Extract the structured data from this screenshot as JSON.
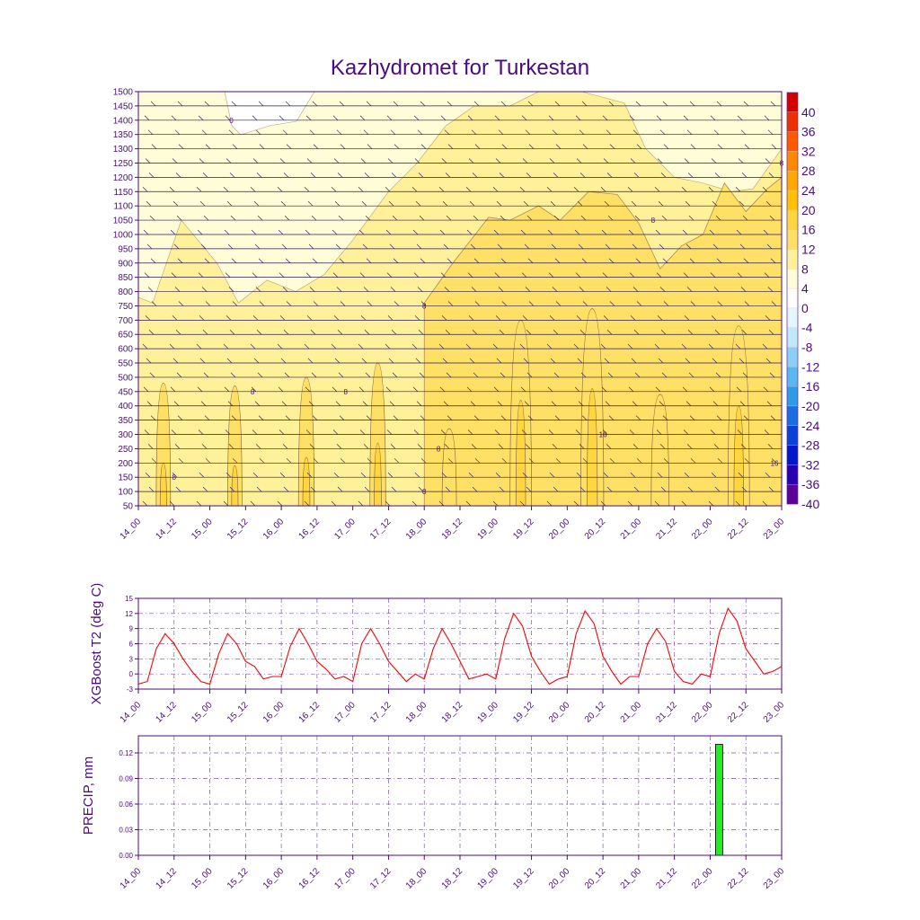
{
  "title": "Kazhydromet for Turkestan",
  "colors": {
    "frame": "#4b0b82",
    "t2_line": "#ff0000",
    "precip_bar": "#22ee22",
    "grid": "#7a5aa8"
  },
  "time_ticks": [
    "14_00",
    "14_12",
    "15_00",
    "15_12",
    "16_00",
    "16_12",
    "17_00",
    "17_12",
    "18_00",
    "18_12",
    "19_00",
    "19_12",
    "20_00",
    "20_12",
    "21_00",
    "21_12",
    "22_00",
    "22_12",
    "23_00"
  ],
  "chart_data": [
    {
      "type": "heatmap",
      "title": "Kazhydromet for Turkestan",
      "x_ticks": [
        "14_00",
        "14_12",
        "15_00",
        "15_12",
        "16_00",
        "16_12",
        "17_00",
        "17_12",
        "18_00",
        "18_12",
        "19_00",
        "19_12",
        "20_00",
        "20_12",
        "21_00",
        "21_12",
        "22_00",
        "22_12",
        "23_00"
      ],
      "y_ticks": [
        "50",
        "100",
        "150",
        "200",
        "250",
        "300",
        "350",
        "400",
        "450",
        "500",
        "550",
        "600",
        "650",
        "700",
        "750",
        "800",
        "850",
        "900",
        "950",
        "1000",
        "1050",
        "1100",
        "1150",
        "1200",
        "1250",
        "1300",
        "1350",
        "1400",
        "1450",
        "1500"
      ],
      "ylim": [
        50,
        1500
      ],
      "colorbar": {
        "labels": [
          "40",
          "36",
          "32",
          "28",
          "24",
          "20",
          "16",
          "12",
          "8",
          "4",
          "0",
          "-4",
          "-8",
          "-12",
          "-16",
          "-20",
          "-24",
          "-28",
          "-32",
          "-36",
          "-40"
        ],
        "colors": [
          "#d40000",
          "#ee3000",
          "#ff5a00",
          "#ff8800",
          "#ffa800",
          "#ffc000",
          "#ffd640",
          "#ffe066",
          "#fff09a",
          "#fffdd8",
          "#ffffff",
          "#e4f6ff",
          "#c0e8fa",
          "#8ccff4",
          "#58b8ef",
          "#2d9be8",
          "#1a6ee0",
          "#0a42d6",
          "#0018c8",
          "#2800b0",
          "#5a0096"
        ]
      },
      "contour_labels": [
        {
          "text": "0",
          "x": 15.3,
          "y": 1400
        },
        {
          "text": "8",
          "x": 14.5,
          "y": 150
        },
        {
          "text": "8",
          "x": 15.6,
          "y": 450
        },
        {
          "text": "8",
          "x": 16.9,
          "y": 450
        },
        {
          "text": "8",
          "x": 18.0,
          "y": 750
        },
        {
          "text": "8",
          "x": 18.2,
          "y": 250
        },
        {
          "text": "8",
          "x": 18.0,
          "y": 100
        },
        {
          "text": "16",
          "x": 20.5,
          "y": 300
        },
        {
          "text": "8",
          "x": 21.2,
          "y": 1050
        },
        {
          "text": "16",
          "x": 22.9,
          "y": 200
        },
        {
          "text": "8",
          "x": 23.0,
          "y": 1250
        }
      ],
      "warm_ceiling_m": [
        {
          "x": 14.0,
          "y": 780
        },
        {
          "x": 14.2,
          "y": 760
        },
        {
          "x": 14.6,
          "y": 1050
        },
        {
          "x": 15.1,
          "y": 900
        },
        {
          "x": 15.4,
          "y": 760
        },
        {
          "x": 15.8,
          "y": 840
        },
        {
          "x": 16.2,
          "y": 800
        },
        {
          "x": 16.6,
          "y": 860
        },
        {
          "x": 17.0,
          "y": 980
        },
        {
          "x": 17.5,
          "y": 1150
        },
        {
          "x": 17.9,
          "y": 1250
        },
        {
          "x": 18.3,
          "y": 1380
        },
        {
          "x": 18.7,
          "y": 1450
        },
        {
          "x": 19.2,
          "y": 1450
        },
        {
          "x": 19.6,
          "y": 1500
        },
        {
          "x": 19.9,
          "y": 1500
        },
        {
          "x": 20.2,
          "y": 1500
        },
        {
          "x": 20.8,
          "y": 1460
        },
        {
          "x": 21.1,
          "y": 1300
        },
        {
          "x": 21.5,
          "y": 1200
        },
        {
          "x": 21.9,
          "y": 1180
        },
        {
          "x": 22.3,
          "y": 1150
        },
        {
          "x": 22.6,
          "y": 1160
        },
        {
          "x": 23.0,
          "y": 1300
        }
      ],
      "warm8_boundary_m": [
        {
          "x": 18.0,
          "y": 50
        },
        {
          "x": 18.0,
          "y": 760
        },
        {
          "x": 18.4,
          "y": 900
        },
        {
          "x": 18.9,
          "y": 1060
        },
        {
          "x": 19.2,
          "y": 1050
        },
        {
          "x": 19.6,
          "y": 1100
        },
        {
          "x": 19.9,
          "y": 1050
        },
        {
          "x": 20.3,
          "y": 1150
        },
        {
          "x": 20.7,
          "y": 1140
        },
        {
          "x": 21.0,
          "y": 1040
        },
        {
          "x": 21.3,
          "y": 880
        },
        {
          "x": 21.6,
          "y": 960
        },
        {
          "x": 21.9,
          "y": 1000
        },
        {
          "x": 22.2,
          "y": 1180
        },
        {
          "x": 22.5,
          "y": 1080
        },
        {
          "x": 22.8,
          "y": 1160
        },
        {
          "x": 23.0,
          "y": 1200
        },
        {
          "x": 23.0,
          "y": 50
        }
      ],
      "diurnal_plumes_m": [
        {
          "center": 14.35,
          "top": 480,
          "width": 0.2
        },
        {
          "center": 15.35,
          "top": 470,
          "width": 0.2
        },
        {
          "center": 16.35,
          "top": 500,
          "width": 0.22
        },
        {
          "center": 17.35,
          "top": 550,
          "width": 0.22
        },
        {
          "center": 18.35,
          "top": 320,
          "width": 0.2
        },
        {
          "center": 19.35,
          "top": 700,
          "width": 0.3
        },
        {
          "center": 20.35,
          "top": 740,
          "width": 0.32
        },
        {
          "center": 21.3,
          "top": 440,
          "width": 0.25
        },
        {
          "center": 22.4,
          "top": 680,
          "width": 0.3
        }
      ]
    },
    {
      "type": "line",
      "ylabel": "XGBoost T2 (deg C)",
      "ylim": [
        -3,
        15
      ],
      "y_ticks": [
        "-3",
        "0",
        "3",
        "6",
        "9",
        "12",
        "15"
      ],
      "x": [
        14.0,
        14.125,
        14.25,
        14.375,
        14.5,
        14.625,
        14.75,
        14.875,
        15.0,
        15.125,
        15.25,
        15.375,
        15.5,
        15.625,
        15.75,
        15.875,
        16.0,
        16.125,
        16.25,
        16.375,
        16.5,
        16.625,
        16.75,
        16.875,
        17.0,
        17.125,
        17.25,
        17.375,
        17.5,
        17.625,
        17.75,
        17.875,
        18.0,
        18.125,
        18.25,
        18.375,
        18.5,
        18.625,
        18.75,
        18.875,
        19.0,
        19.125,
        19.25,
        19.375,
        19.5,
        19.625,
        19.75,
        19.875,
        20.0,
        20.125,
        20.25,
        20.375,
        20.5,
        20.625,
        20.75,
        20.875,
        21.0,
        21.125,
        21.25,
        21.375,
        21.5,
        21.625,
        21.75,
        21.875,
        22.0,
        22.125,
        22.25,
        22.375,
        22.5,
        22.625,
        22.75,
        22.875,
        23.0
      ],
      "values": [
        -2.0,
        -1.5,
        5.0,
        8.0,
        6.0,
        3.0,
        0.5,
        -1.5,
        -2.0,
        4.0,
        8.0,
        6.0,
        2.5,
        1.5,
        -1.0,
        -0.5,
        -0.5,
        5.5,
        9.0,
        6.0,
        2.5,
        1.0,
        -1.0,
        -0.5,
        -1.5,
        6.0,
        9.0,
        6.0,
        2.5,
        0.5,
        -1.5,
        0.0,
        -1.0,
        5.0,
        9.0,
        6.0,
        2.5,
        -1.0,
        -0.5,
        0.0,
        -1.0,
        7.0,
        12.0,
        9.5,
        3.5,
        0.5,
        -2.0,
        -1.0,
        -0.5,
        8.0,
        12.5,
        10.0,
        3.5,
        0.5,
        -2.0,
        -0.5,
        -0.5,
        6.0,
        9.0,
        6.5,
        0.5,
        -1.5,
        -2.0,
        0.0,
        -0.5,
        8.0,
        13.0,
        10.5,
        5.0,
        2.5,
        0.0,
        0.5,
        1.5
      ]
    },
    {
      "type": "bar",
      "ylabel": "PRECIP, mm",
      "ylim": [
        0,
        0.14
      ],
      "y_ticks": [
        "0.00",
        "0.03",
        "0.06",
        "0.09",
        "0.12"
      ],
      "bars": [
        {
          "x": 22.125,
          "value": 0.13
        }
      ]
    }
  ]
}
